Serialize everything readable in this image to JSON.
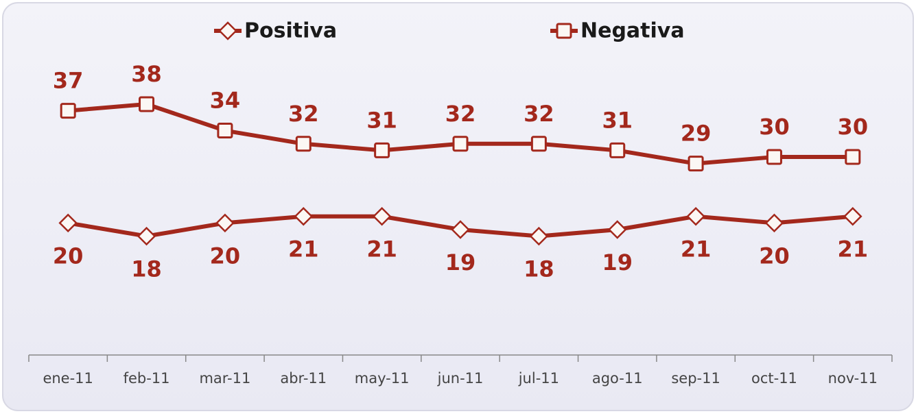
{
  "chart_data": {
    "type": "line",
    "categories": [
      "ene-11",
      "feb-11",
      "mar-11",
      "abr-11",
      "may-11",
      "jun-11",
      "jul-11",
      "ago-11",
      "sep-11",
      "oct-11",
      "nov-11"
    ],
    "series": [
      {
        "name": "Positiva",
        "color": "#a3281c",
        "marker": "diamond",
        "values": [
          20,
          18,
          20,
          21,
          21,
          19,
          18,
          19,
          21,
          20,
          21
        ]
      },
      {
        "name": "Negativa",
        "color": "#a3281c",
        "marker": "square",
        "values": [
          37,
          38,
          34,
          32,
          31,
          32,
          32,
          31,
          29,
          30,
          30
        ]
      }
    ],
    "legend": "top"
  }
}
